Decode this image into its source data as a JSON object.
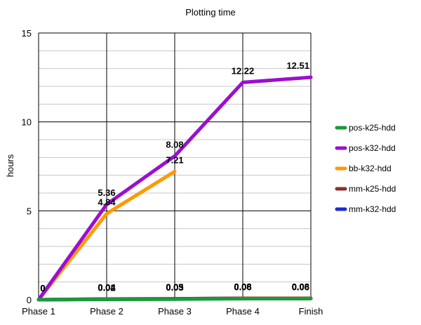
{
  "chart_data": {
    "type": "line",
    "title": "Plotting time",
    "ylabel": "hours",
    "xlabel": "",
    "categories": [
      "Phase 1",
      "Phase 2",
      "Phase 3",
      "Phase 4",
      "Finish"
    ],
    "ylim": [
      0,
      15
    ],
    "yticks": [
      0,
      5,
      10,
      15
    ],
    "minor_step": 1,
    "grid": true,
    "legend_position": "right",
    "series": [
      {
        "name": "pos-k25-hdd",
        "color": "#1a9a3a",
        "values": [
          0,
          0.02,
          0.03,
          0.06,
          0.06
        ]
      },
      {
        "name": "pos-k32-hdd",
        "color": "#9a0fd0",
        "values": [
          0,
          5.36,
          8.08,
          12.22,
          12.51
        ]
      },
      {
        "name": "bb-k32-hdd",
        "color": "#ff9900",
        "values": [
          0,
          4.84,
          7.21,
          null,
          null
        ]
      },
      {
        "name": "mm-k25-hdd",
        "color": "#8e2f2f",
        "values": [
          0,
          0.04,
          0.05,
          0.08,
          0.08
        ]
      },
      {
        "name": "mm-k32-hdd",
        "color": "#1f2bd1",
        "values": [
          0,
          0.04,
          0.05,
          0.08,
          0.08
        ]
      }
    ]
  }
}
